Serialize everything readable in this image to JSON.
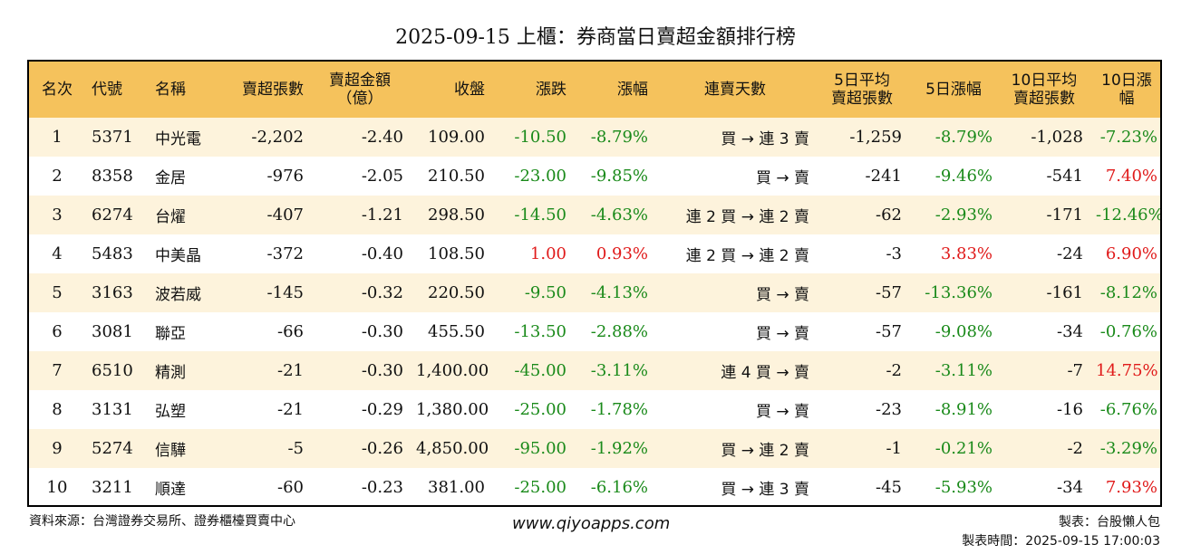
{
  "title": "2025-09-15 上櫃：券商當日賣超金額排行榜",
  "colors": {
    "header_bg": "#f5c25c",
    "stripe": "#fdf3dc",
    "up": "#e01a1a",
    "down": "#1a8a1a"
  },
  "headers": {
    "rank": "名次",
    "code": "代號",
    "name": "名稱",
    "net_sell_lots": "賣超張數",
    "net_sell_amount": "賣超金額\n（億）",
    "close": "收盤",
    "change": "漲跌",
    "change_pct": "漲幅",
    "streak": "連賣天數",
    "avg5_lots": "5日平均\n賣超張數",
    "pct5": "5日漲幅",
    "avg10_lots": "10日平均\n賣超張數",
    "pct10": "10日漲幅"
  },
  "rows": [
    {
      "rank": "1",
      "code": "5371",
      "name": "中光電",
      "lots": "-2,202",
      "amount": "-2.40",
      "close": "109.00",
      "change": "-10.50",
      "change_color": "green",
      "change_pct": "-8.79%",
      "pct_color": "green",
      "streak": "買 → 連 3 賣",
      "avg5": "-1,259",
      "pct5": "-8.79%",
      "pct5_color": "green",
      "avg10": "-1,028",
      "pct10": "-7.23%",
      "pct10_color": "green"
    },
    {
      "rank": "2",
      "code": "8358",
      "name": "金居",
      "lots": "-976",
      "amount": "-2.05",
      "close": "210.50",
      "change": "-23.00",
      "change_color": "green",
      "change_pct": "-9.85%",
      "pct_color": "green",
      "streak": "買 → 賣",
      "avg5": "-241",
      "pct5": "-9.46%",
      "pct5_color": "green",
      "avg10": "-541",
      "pct10": "7.40%",
      "pct10_color": "red"
    },
    {
      "rank": "3",
      "code": "6274",
      "name": "台燿",
      "lots": "-407",
      "amount": "-1.21",
      "close": "298.50",
      "change": "-14.50",
      "change_color": "green",
      "change_pct": "-4.63%",
      "pct_color": "green",
      "streak": "連 2 買 → 連 2 賣",
      "avg5": "-62",
      "pct5": "-2.93%",
      "pct5_color": "green",
      "avg10": "-171",
      "pct10": "-12.46%",
      "pct10_color": "green"
    },
    {
      "rank": "4",
      "code": "5483",
      "name": "中美晶",
      "lots": "-372",
      "amount": "-0.40",
      "close": "108.50",
      "change": "1.00",
      "change_color": "red",
      "change_pct": "0.93%",
      "pct_color": "red",
      "streak": "連 2 買 → 連 2 賣",
      "avg5": "-3",
      "pct5": "3.83%",
      "pct5_color": "red",
      "avg10": "-24",
      "pct10": "6.90%",
      "pct10_color": "red"
    },
    {
      "rank": "5",
      "code": "3163",
      "name": "波若威",
      "lots": "-145",
      "amount": "-0.32",
      "close": "220.50",
      "change": "-9.50",
      "change_color": "green",
      "change_pct": "-4.13%",
      "pct_color": "green",
      "streak": "買 → 賣",
      "avg5": "-57",
      "pct5": "-13.36%",
      "pct5_color": "green",
      "avg10": "-161",
      "pct10": "-8.12%",
      "pct10_color": "green"
    },
    {
      "rank": "6",
      "code": "3081",
      "name": "聯亞",
      "lots": "-66",
      "amount": "-0.30",
      "close": "455.50",
      "change": "-13.50",
      "change_color": "green",
      "change_pct": "-2.88%",
      "pct_color": "green",
      "streak": "買 → 賣",
      "avg5": "-57",
      "pct5": "-9.08%",
      "pct5_color": "green",
      "avg10": "-34",
      "pct10": "-0.76%",
      "pct10_color": "green"
    },
    {
      "rank": "7",
      "code": "6510",
      "name": "精測",
      "lots": "-21",
      "amount": "-0.30",
      "close": "1,400.00",
      "change": "-45.00",
      "change_color": "green",
      "change_pct": "-3.11%",
      "pct_color": "green",
      "streak": "連 4 買 → 賣",
      "avg5": "-2",
      "pct5": "-3.11%",
      "pct5_color": "green",
      "avg10": "-7",
      "pct10": "14.75%",
      "pct10_color": "red"
    },
    {
      "rank": "8",
      "code": "3131",
      "name": "弘塑",
      "lots": "-21",
      "amount": "-0.29",
      "close": "1,380.00",
      "change": "-25.00",
      "change_color": "green",
      "change_pct": "-1.78%",
      "pct_color": "green",
      "streak": "買 → 賣",
      "avg5": "-23",
      "pct5": "-8.91%",
      "pct5_color": "green",
      "avg10": "-16",
      "pct10": "-6.76%",
      "pct10_color": "green"
    },
    {
      "rank": "9",
      "code": "5274",
      "name": "信驊",
      "lots": "-5",
      "amount": "-0.26",
      "close": "4,850.00",
      "change": "-95.00",
      "change_color": "green",
      "change_pct": "-1.92%",
      "pct_color": "green",
      "streak": "買 → 連 2 賣",
      "avg5": "-1",
      "pct5": "-0.21%",
      "pct5_color": "green",
      "avg10": "-2",
      "pct10": "-3.29%",
      "pct10_color": "green"
    },
    {
      "rank": "10",
      "code": "3211",
      "name": "順達",
      "lots": "-60",
      "amount": "-0.23",
      "close": "381.00",
      "change": "-25.00",
      "change_color": "green",
      "change_pct": "-6.16%",
      "pct_color": "green",
      "streak": "買 → 連 3 賣",
      "avg5": "-45",
      "pct5": "-5.93%",
      "pct5_color": "green",
      "avg10": "-34",
      "pct10": "7.93%",
      "pct10_color": "red"
    }
  ],
  "footer": {
    "source": "資料來源：台灣證券交易所、證券櫃檯買賣中心",
    "website": "www.qiyoapps.com",
    "author": "製表：台股懶人包",
    "made_at": "製表時間：2025-09-15 17:00:03"
  }
}
